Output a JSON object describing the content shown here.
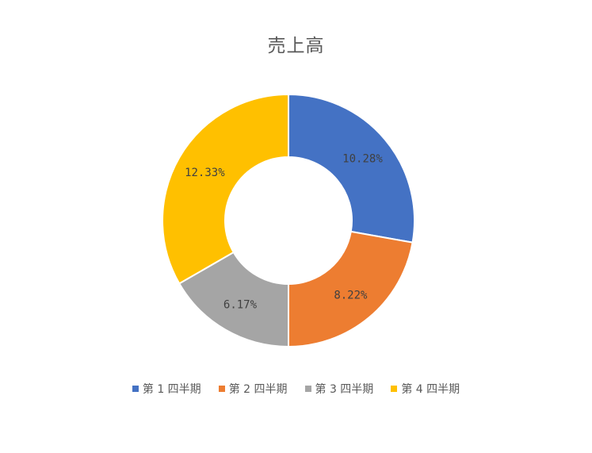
{
  "chart_data": {
    "type": "pie",
    "variant": "doughnut",
    "title": "売上高",
    "categories": [
      "第 1 四半期",
      "第 2 四半期",
      "第 3 四半期",
      "第 4 四半期"
    ],
    "values": [
      10.28,
      8.22,
      6.17,
      12.33
    ],
    "data_labels": [
      "10.28%",
      "8.22%",
      "6.17%",
      "12.33%"
    ],
    "colors": [
      "#4472C4",
      "#ED7D31",
      "#A5A5A5",
      "#FFC000"
    ],
    "legend_position": "bottom",
    "grid": false
  }
}
